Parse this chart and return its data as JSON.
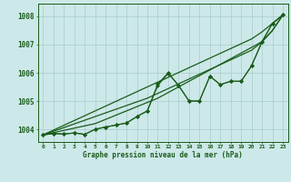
{
  "bg_color": "#cce8e8",
  "grid_color": "#aacccc",
  "line_color": "#1a5c1a",
  "title": "Graphe pression niveau de la mer (hPa)",
  "hours": [
    0,
    1,
    2,
    3,
    4,
    5,
    6,
    7,
    8,
    9,
    10,
    11,
    12,
    13,
    14,
    15,
    16,
    17,
    18,
    19,
    20,
    21,
    22,
    23
  ],
  "ylim": [
    1003.55,
    1008.45
  ],
  "yticks": [
    1004,
    1005,
    1006,
    1007,
    1008
  ],
  "series": {
    "data1": [
      1003.8,
      1003.85,
      1003.83,
      1003.87,
      1003.82,
      1004.0,
      1004.08,
      1004.15,
      1004.22,
      1004.45,
      1004.65,
      1005.55,
      1005.98,
      1005.55,
      1005.0,
      1005.0,
      1005.88,
      1005.58,
      1005.7,
      1005.7,
      1006.25,
      1007.1,
      1007.75,
      1008.05
    ],
    "data2": [
      1003.8,
      1003.85,
      1003.83,
      1003.87,
      1003.82,
      1004.0,
      1004.08,
      1004.15,
      1004.22,
      1004.45,
      1004.65,
      1005.6,
      1006.0,
      1005.55,
      1005.0,
      1005.0,
      1005.88,
      1005.58,
      1005.7,
      1005.7,
      1006.25,
      1007.1,
      1007.75,
      1008.05
    ],
    "trend_high": [
      1003.8,
      1003.97,
      1004.14,
      1004.31,
      1004.48,
      1004.65,
      1004.82,
      1004.99,
      1005.16,
      1005.33,
      1005.5,
      1005.67,
      1005.84,
      1006.01,
      1006.18,
      1006.35,
      1006.52,
      1006.69,
      1006.86,
      1007.03,
      1007.2,
      1007.45,
      1007.75,
      1008.05
    ],
    "trend_mid": [
      1003.8,
      1003.93,
      1004.06,
      1004.19,
      1004.32,
      1004.45,
      1004.58,
      1004.71,
      1004.84,
      1004.97,
      1005.1,
      1005.27,
      1005.44,
      1005.61,
      1005.78,
      1005.95,
      1006.12,
      1006.29,
      1006.46,
      1006.63,
      1006.8,
      1007.1,
      1007.5,
      1008.05
    ],
    "trend_low": [
      1003.8,
      1003.88,
      1003.96,
      1004.04,
      1004.12,
      1004.2,
      1004.35,
      1004.5,
      1004.65,
      1004.8,
      1004.95,
      1005.1,
      1005.3,
      1005.5,
      1005.7,
      1005.9,
      1006.1,
      1006.3,
      1006.5,
      1006.7,
      1006.9,
      1007.1,
      1007.5,
      1008.05
    ]
  }
}
